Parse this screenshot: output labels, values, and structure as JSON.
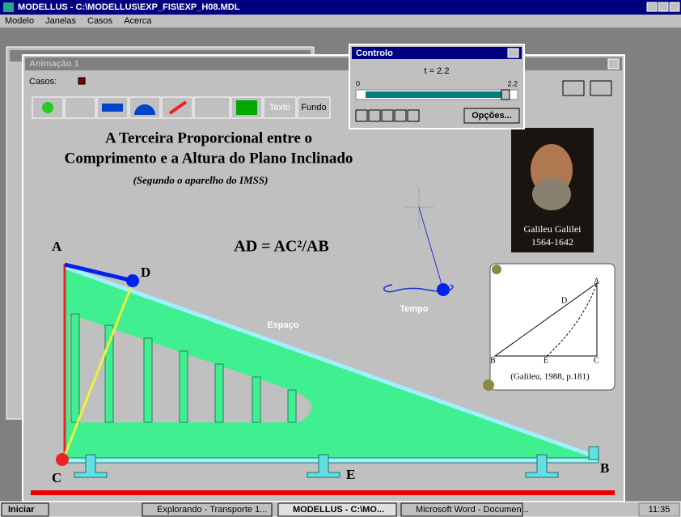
{
  "app_window": {
    "title": "MODELLUS - C:\\MODELLUS\\EXP_FIS\\EXP_H08.MDL",
    "menu": [
      "Modelo",
      "Janelas",
      "Casos",
      "Acerca"
    ]
  },
  "animation_window": {
    "title": "Animação 1",
    "cases_label": "Casos:",
    "toolbar": [
      "Texto",
      "Fundo"
    ],
    "heading": [
      "A Terceira Proporcional entre o",
      "Comprimento e a Altura do Plano Inclinado"
    ],
    "subheading": "(Segundo o aparelho do IMSS)",
    "formula": "AD = AC²/AB",
    "points": {
      "A": "A",
      "D": "D",
      "C": "C",
      "E": "E",
      "B": "B"
    },
    "space_label": "Espaço",
    "time_label": "Tempo",
    "portrait": {
      "name": "Galileu Galilei",
      "years": "1564-1642"
    },
    "note": {
      "labels": [
        "A",
        "D",
        "B",
        "E",
        "C"
      ],
      "citation": "(Galileu, 1988, p.181)"
    }
  },
  "control_window": {
    "title": "Controlo",
    "time": "t = 2.2",
    "min": "0",
    "max": "2.2",
    "options": "Opções..."
  },
  "taskbar": {
    "start": "Iniciar",
    "tasks": [
      "Explorando - Transporte 1...",
      "MODELLUS - C:\\MO...",
      "Microsoft Word - Documen..."
    ],
    "clock": "11:35"
  }
}
